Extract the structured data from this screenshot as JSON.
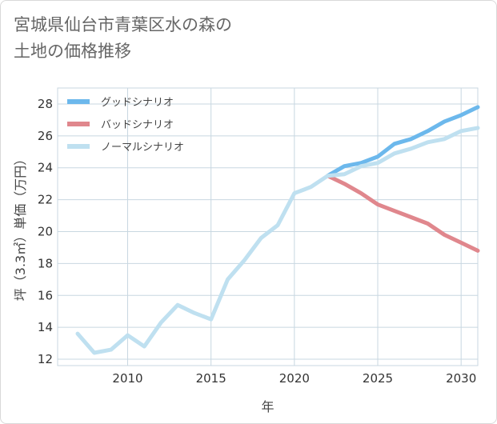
{
  "title_line1": "宮城県仙台市青葉区水の森の",
  "title_line2": "土地の価格推移",
  "chart_data": {
    "type": "line",
    "xlabel": "年",
    "ylabel": "坪（3.3㎡）単価（万円）",
    "xlim": [
      2005.8,
      2031
    ],
    "ylim": [
      11.6,
      29
    ],
    "xticks": [
      2010,
      2015,
      2020,
      2025,
      2030
    ],
    "yticks": [
      12,
      14,
      16,
      18,
      20,
      22,
      24,
      26,
      28
    ],
    "grid": true,
    "legend_position": "top-left",
    "series": [
      {
        "name": "グッドシナリオ",
        "color": "#6cb8ec",
        "x": [
          2022,
          2023,
          2024,
          2025,
          2026,
          2027,
          2028,
          2029,
          2030,
          2031
        ],
        "y": [
          23.5,
          24.1,
          24.3,
          24.7,
          25.5,
          25.8,
          26.3,
          26.9,
          27.3,
          27.8
        ]
      },
      {
        "name": "バッドシナリオ",
        "color": "#e0878d",
        "x": [
          2022,
          2023,
          2024,
          2025,
          2026,
          2027,
          2028,
          2029,
          2030,
          2031
        ],
        "y": [
          23.5,
          23.0,
          22.4,
          21.7,
          21.3,
          20.9,
          20.5,
          19.8,
          19.3,
          18.8
        ]
      },
      {
        "name": "ノーマルシナリオ",
        "color": "#bfe0f0",
        "x": [
          2007,
          2008,
          2009,
          2010,
          2011,
          2012,
          2013,
          2014,
          2015,
          2016,
          2017,
          2018,
          2019,
          2020,
          2021,
          2022,
          2023,
          2024,
          2025,
          2026,
          2027,
          2028,
          2029,
          2030,
          2031
        ],
        "y": [
          13.6,
          12.4,
          12.6,
          13.5,
          12.8,
          14.3,
          15.4,
          14.9,
          14.5,
          17.0,
          18.2,
          19.6,
          20.4,
          22.4,
          22.8,
          23.5,
          23.6,
          24.1,
          24.3,
          24.9,
          25.2,
          25.6,
          25.8,
          26.3,
          26.5
        ]
      }
    ]
  }
}
